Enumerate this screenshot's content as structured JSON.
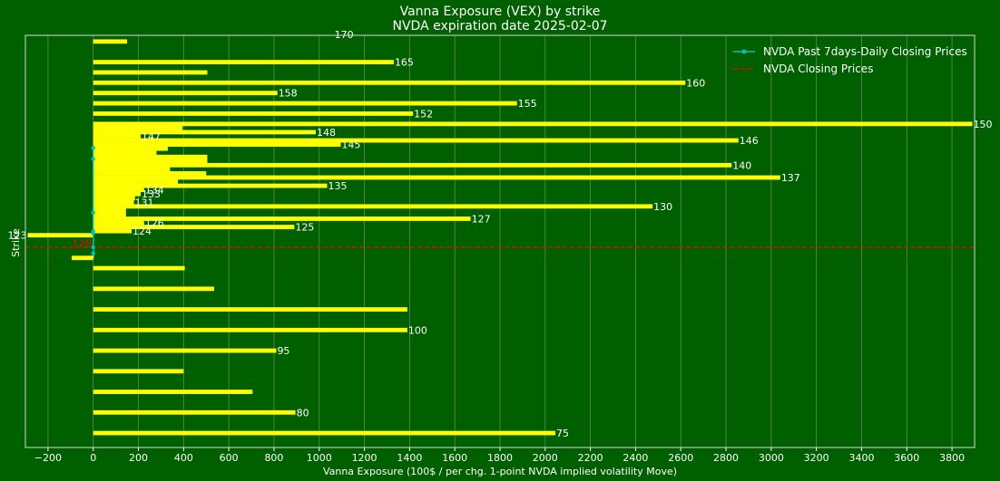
{
  "chart_data": {
    "type": "bar",
    "orientation": "horizontal",
    "title": "Vanna Exposure (VEX) by strike",
    "subtitle": "NVDA expiration date 2025-02-07",
    "xlabel": "Vanna Exposure (100$ / per chg. 1-point NVDA implied volatility Move)",
    "ylabel": "Strike",
    "xlim": [
      -300,
      3900
    ],
    "ylim": [
      71.5,
      171.5
    ],
    "grid": "vertical",
    "legend_position": "top-right",
    "xticks": [
      -200,
      0,
      200,
      400,
      600,
      800,
      1000,
      1200,
      1400,
      1600,
      1800,
      2000,
      2200,
      2400,
      2600,
      2800,
      3000,
      3200,
      3400,
      3600,
      3800
    ],
    "series": [
      {
        "name": "VEX",
        "color": "#ffff00",
        "bars": [
          {
            "strike": 170,
            "value": 150,
            "label": "170"
          },
          {
            "strike": 165,
            "value": 1330,
            "label": "165"
          },
          {
            "strike": 162.5,
            "value": 505,
            "label": ""
          },
          {
            "strike": 160,
            "value": 2620,
            "label": "160"
          },
          {
            "strike": 157.5,
            "value": 815,
            "label": "158"
          },
          {
            "strike": 155,
            "value": 1875,
            "label": "155"
          },
          {
            "strike": 152.5,
            "value": 1415,
            "label": "152"
          },
          {
            "strike": 150,
            "value": 3890,
            "label": "150"
          },
          {
            "strike": 149,
            "value": 395,
            "label": ""
          },
          {
            "strike": 148,
            "value": 985,
            "label": "148"
          },
          {
            "strike": 147,
            "value": 210,
            "label": "147"
          },
          {
            "strike": 146,
            "value": 2855,
            "label": "146"
          },
          {
            "strike": 145,
            "value": 1095,
            "label": "145"
          },
          {
            "strike": 144,
            "value": 330,
            "label": ""
          },
          {
            "strike": 143,
            "value": 280,
            "label": ""
          },
          {
            "strike": 142,
            "value": 505,
            "label": ""
          },
          {
            "strike": 141,
            "value": 505,
            "label": ""
          },
          {
            "strike": 140,
            "value": 2825,
            "label": "140"
          },
          {
            "strike": 139,
            "value": 340,
            "label": ""
          },
          {
            "strike": 138,
            "value": 500,
            "label": ""
          },
          {
            "strike": 137,
            "value": 3040,
            "label": "137"
          },
          {
            "strike": 136,
            "value": 375,
            "label": ""
          },
          {
            "strike": 135,
            "value": 1035,
            "label": "135"
          },
          {
            "strike": 134,
            "value": 225,
            "label": "134"
          },
          {
            "strike": 133,
            "value": 210,
            "label": "133"
          },
          {
            "strike": 132,
            "value": 185,
            "label": ""
          },
          {
            "strike": 131,
            "value": 180,
            "label": "131"
          },
          {
            "strike": 130,
            "value": 2475,
            "label": "130"
          },
          {
            "strike": 129,
            "value": 145,
            "label": ""
          },
          {
            "strike": 128,
            "value": 145,
            "label": ""
          },
          {
            "strike": 127,
            "value": 1670,
            "label": "127"
          },
          {
            "strike": 126,
            "value": 225,
            "label": "126"
          },
          {
            "strike": 125,
            "value": 890,
            "label": "125"
          },
          {
            "strike": 124,
            "value": 170,
            "label": "124"
          },
          {
            "strike": 123,
            "value": -290,
            "label": "123"
          },
          {
            "strike": 122,
            "value": 2,
            "label": ""
          },
          {
            "strike": 121,
            "value": 2,
            "label": ""
          },
          {
            "strike": 120,
            "value": 0,
            "label": "120"
          },
          {
            "strike": 119,
            "value": 2,
            "label": ""
          },
          {
            "strike": 118,
            "value": 2,
            "label": ""
          },
          {
            "strike": 117.5,
            "value": -95,
            "label": ""
          },
          {
            "strike": 115,
            "value": 405,
            "label": ""
          },
          {
            "strike": 110,
            "value": 535,
            "label": ""
          },
          {
            "strike": 105,
            "value": 1390,
            "label": ""
          },
          {
            "strike": 100,
            "value": 1390,
            "label": "100"
          },
          {
            "strike": 95,
            "value": 810,
            "label": "95"
          },
          {
            "strike": 90,
            "value": 400,
            "label": ""
          },
          {
            "strike": 85,
            "value": 705,
            "label": ""
          },
          {
            "strike": 80,
            "value": 895,
            "label": "80"
          },
          {
            "strike": 75,
            "value": 2045,
            "label": "75"
          }
        ]
      },
      {
        "name": "NVDA Past 7days-Daily Closing Prices",
        "color": "#00bfbf",
        "points": [
          {
            "x": -5,
            "y": 123.5
          },
          {
            "x": -3,
            "y": 144.2
          },
          {
            "x": -2,
            "y": 141.5
          },
          {
            "x": -1,
            "y": 128.5
          },
          {
            "x": 0,
            "y": 124
          },
          {
            "x": 0,
            "y": 120.1
          },
          {
            "x": 0,
            "y": 118.6
          }
        ]
      },
      {
        "name": "NVDA Closing Prices",
        "color": "#ff0000",
        "value": 120.1
      }
    ]
  }
}
